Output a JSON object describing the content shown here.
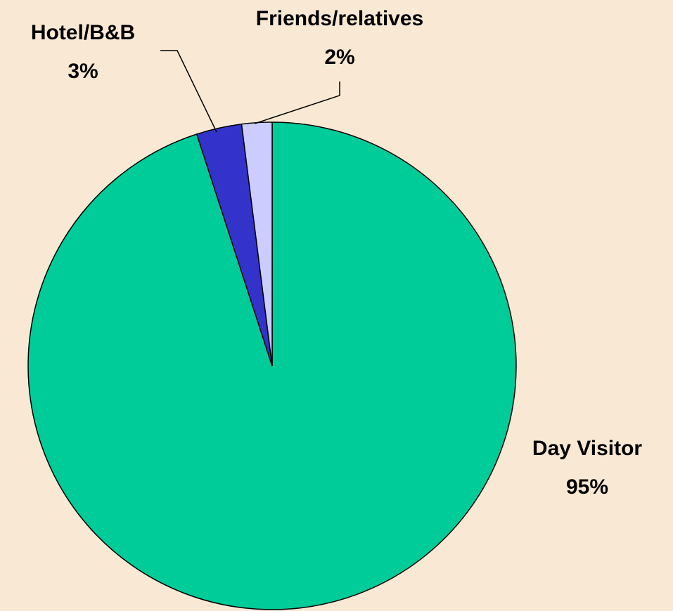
{
  "chart_data": {
    "type": "pie",
    "categories": [
      "Day Visitor",
      "Hotel/B&B",
      "Friends/relatives"
    ],
    "values": [
      95,
      3,
      2
    ],
    "value_labels": [
      "95%",
      "3%",
      "2%"
    ],
    "colors": [
      "#00cc99",
      "#3333cc",
      "#ccccff"
    ]
  }
}
